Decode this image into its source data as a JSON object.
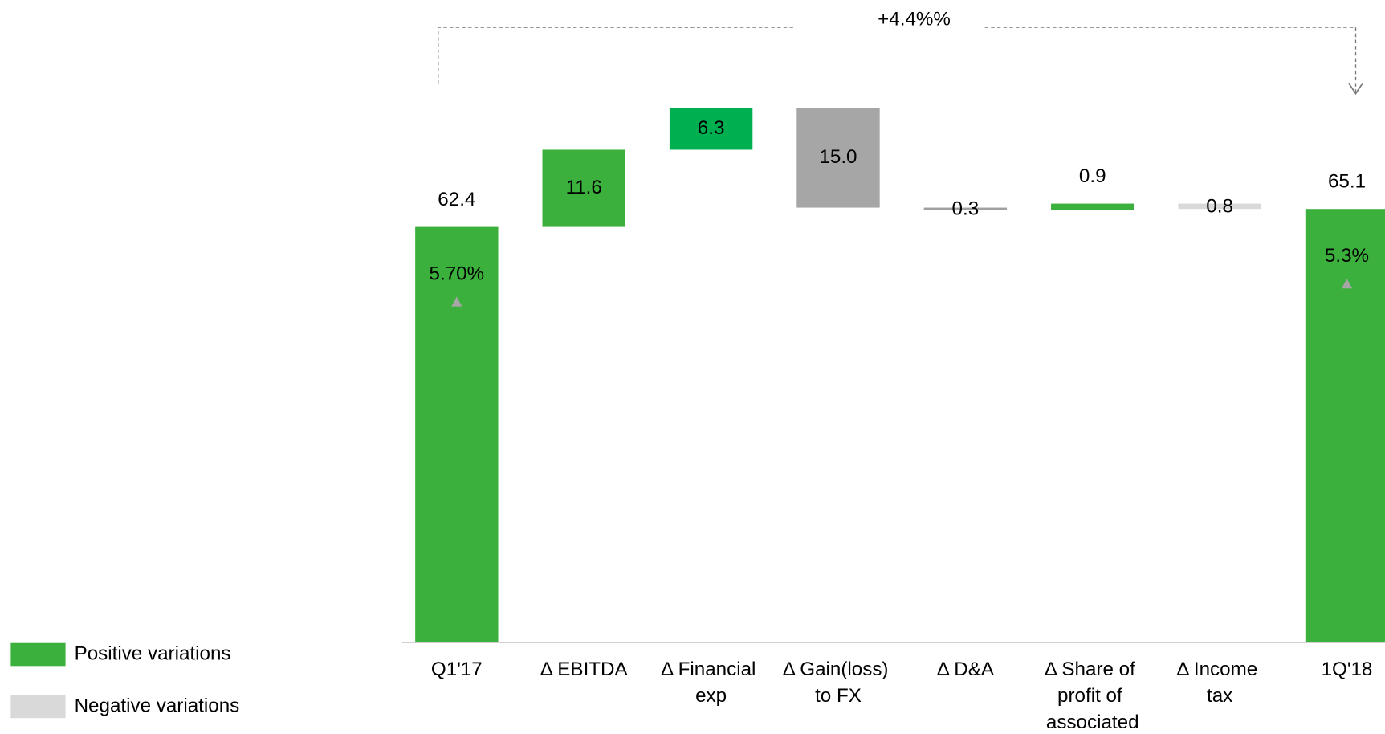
{
  "chart_data": {
    "type": "waterfall",
    "categories": [
      "Q1'17",
      "Δ EBITDA",
      "Δ Financial exp",
      "Δ Gain(loss) to FX",
      "Δ D&A",
      "Δ Share of profit of associated",
      "Δ Income tax",
      "1Q'18"
    ],
    "values": [
      62.4,
      11.6,
      6.3,
      -15.0,
      -0.3,
      0.9,
      -0.8,
      65.1
    ],
    "value_labels": [
      "62.4",
      "11.6",
      "6.3",
      "15.0",
      "0.3",
      "0.9",
      "0.8",
      "65.1"
    ],
    "measures": [
      "total",
      "relative",
      "relative",
      "relative",
      "relative",
      "relative",
      "relative",
      "total"
    ],
    "colors": [
      "#3cb03c",
      "#3cb03c",
      "#00b050",
      "#a6a6a6",
      "#a0a0a0",
      "#3cb03c",
      "#d9d9d9",
      "#3cb03c"
    ],
    "ylim": [
      0,
      90
    ],
    "annotations": [
      {
        "category": 0,
        "text": "5.70%"
      },
      {
        "category": 7,
        "text": "5.3%"
      }
    ],
    "change_label": "+4.4%%",
    "legend": [
      {
        "label": "Positive variations",
        "color": "#3cb03c"
      },
      {
        "label": "Negative variations",
        "color": "#d9d9d9"
      }
    ]
  }
}
